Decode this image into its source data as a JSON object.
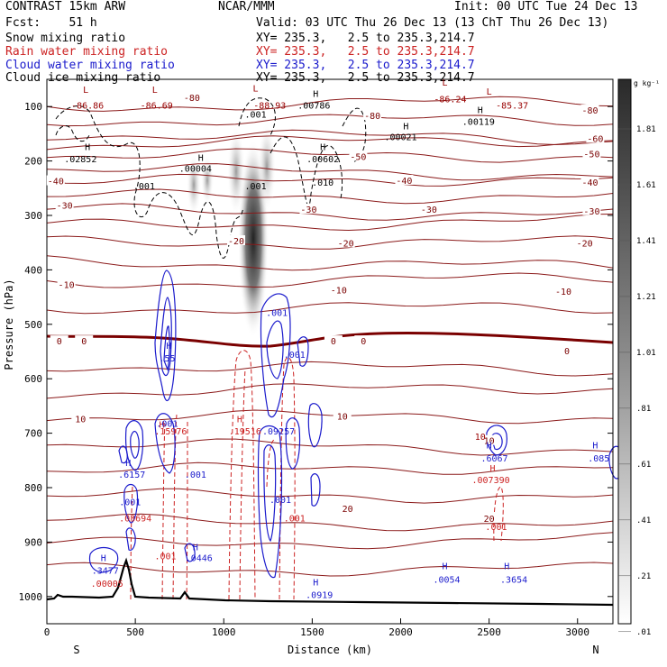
{
  "header": {
    "title": "CONTRAST 15km ARW",
    "center": "NCAR/MMM",
    "init": "Init: 00 UTC Tue 24 Dec 13",
    "fcst": "Fcst:    51 h",
    "valid": "Valid: 03 UTC Thu 26 Dec 13 (13 ChT Thu 26 Dec 13)",
    "fields": [
      {
        "label": "Snow mixing ratio",
        "xy": "XY= 235.3,   2.5 to 235.3,214.7",
        "color": "#000000"
      },
      {
        "label": "Rain water mixing ratio",
        "xy": "XY= 235.3,   2.5 to 235.3,214.7",
        "color": "#cc2222"
      },
      {
        "label": "Cloud water mixing ratio",
        "xy": "XY= 235.3,   2.5 to 235.3,214.7",
        "color": "#1a1acc"
      },
      {
        "label": "Cloud ice mixing ratio",
        "xy": "XY= 235.3,   2.5 to 235.3,214.7",
        "color": "#000000"
      }
    ]
  },
  "chart_data": {
    "type": "contour-cross-section",
    "xlabel": "Distance (km)",
    "ylabel": "Pressure (hPa)",
    "xlim": [
      0,
      3200
    ],
    "ylim": [
      1050,
      50
    ],
    "x_ticks": [
      "0",
      "500",
      "1000",
      "1500",
      "2000",
      "2500",
      "3000"
    ],
    "y_ticks": [
      "100",
      "200",
      "300",
      "400",
      "500",
      "600",
      "700",
      "800",
      "900",
      "1000"
    ],
    "left_end": "S",
    "right_end": "N",
    "colorbar": {
      "unit": "g kg⁻¹",
      "labels": [
        "1.81",
        "1.61",
        "1.41",
        "1.21",
        "1.01",
        ".81",
        ".61",
        ".41",
        ".21",
        ".01"
      ]
    },
    "temperature_labels": [
      {
        "text": "-80",
        "x": 820,
        "p": 85
      },
      {
        "text": "-80",
        "x": 1840,
        "p": 118
      },
      {
        "text": "-80",
        "x": 3070,
        "p": 108
      },
      {
        "text": "-60",
        "x": 3100,
        "p": 160
      },
      {
        "text": "-50",
        "x": 1760,
        "p": 193
      },
      {
        "text": "-50",
        "x": 3080,
        "p": 188
      },
      {
        "text": "-40",
        "x": 50,
        "p": 238
      },
      {
        "text": "-40",
        "x": 2020,
        "p": 237
      },
      {
        "text": "-40",
        "x": 3070,
        "p": 240
      },
      {
        "text": "-30",
        "x": 100,
        "p": 283
      },
      {
        "text": "-30",
        "x": 1480,
        "p": 290
      },
      {
        "text": "-30",
        "x": 2160,
        "p": 290
      },
      {
        "text": "-30",
        "x": 3080,
        "p": 293
      },
      {
        "text": "-20",
        "x": 1070,
        "p": 348
      },
      {
        "text": "-20",
        "x": 1690,
        "p": 352
      },
      {
        "text": "-20",
        "x": 3040,
        "p": 352
      },
      {
        "text": "-10",
        "x": 110,
        "p": 428
      },
      {
        "text": "-10",
        "x": 1650,
        "p": 438
      },
      {
        "text": "-10",
        "x": 2920,
        "p": 441
      },
      {
        "text": "0",
        "x": 70,
        "p": 532
      },
      {
        "text": "0",
        "x": 210,
        "p": 532
      },
      {
        "text": "0",
        "x": 1620,
        "p": 532
      },
      {
        "text": "0",
        "x": 1790,
        "p": 532
      },
      {
        "text": "0",
        "x": 2940,
        "p": 550
      },
      {
        "text": "10",
        "x": 190,
        "p": 675
      },
      {
        "text": "10",
        "x": 1670,
        "p": 670
      },
      {
        "text": "10",
        "x": 2500,
        "p": 715
      },
      {
        "text": "20",
        "x": 1700,
        "p": 840
      },
      {
        "text": "20",
        "x": 2500,
        "p": 858
      }
    ],
    "extrema_labels": [
      {
        "text": "L",
        "x": 220,
        "p": 75,
        "color": "#990000"
      },
      {
        "text": "-86.86",
        "x": 230,
        "p": 104,
        "color": "#990000"
      },
      {
        "text": "L",
        "x": 610,
        "p": 75,
        "color": "#990000"
      },
      {
        "text": "-86.69",
        "x": 620,
        "p": 104,
        "color": "#990000"
      },
      {
        "text": "L",
        "x": 1180,
        "p": 72,
        "color": "#990000"
      },
      {
        "text": "-88.93",
        "x": 1260,
        "p": 104,
        "color": "#990000"
      },
      {
        "text": "L",
        "x": 2250,
        "p": 62,
        "color": "#990000"
      },
      {
        "text": "-86.24",
        "x": 2280,
        "p": 92,
        "color": "#990000"
      },
      {
        "text": "L",
        "x": 2500,
        "p": 78,
        "color": "#990000"
      },
      {
        "text": "-85.37",
        "x": 2630,
        "p": 104,
        "color": "#990000"
      },
      {
        "text": ".001",
        "x": 1180,
        "p": 120,
        "color": "#000000"
      },
      {
        "text": "H",
        "x": 1520,
        "p": 82,
        "color": "#000000"
      },
      {
        "text": ".00786",
        "x": 1510,
        "p": 104,
        "color": "#000000"
      },
      {
        "text": "H",
        "x": 2450,
        "p": 112,
        "color": "#000000"
      },
      {
        "text": ".00119",
        "x": 2440,
        "p": 134,
        "color": "#000000"
      },
      {
        "text": "H",
        "x": 2030,
        "p": 142,
        "color": "#000000"
      },
      {
        "text": ".00021",
        "x": 2000,
        "p": 162,
        "color": "#000000"
      },
      {
        "text": "H",
        "x": 230,
        "p": 180,
        "color": "#000000"
      },
      {
        "text": ".02852",
        "x": 190,
        "p": 202,
        "color": "#000000"
      },
      {
        "text": "H",
        "x": 1560,
        "p": 180,
        "color": "#000000"
      },
      {
        "text": ".00602",
        "x": 1560,
        "p": 202,
        "color": "#000000"
      },
      {
        "text": "H",
        "x": 870,
        "p": 200,
        "color": "#000000"
      },
      {
        "text": ".00004",
        "x": 840,
        "p": 220,
        "color": "#000000"
      },
      {
        "text": ".001",
        "x": 550,
        "p": 252,
        "color": "#000000"
      },
      {
        "text": ".001",
        "x": 1180,
        "p": 252,
        "color": "#000000"
      },
      {
        "text": ".010",
        "x": 1560,
        "p": 245,
        "color": "#000000"
      },
      {
        "text": ".001",
        "x": 1300,
        "p": 485,
        "color": "#1a1acc"
      },
      {
        "text": "H",
        "x": 690,
        "p": 545,
        "color": "#1a1acc"
      },
      {
        "text": ".55",
        "x": 680,
        "p": 568,
        "color": "#1a1acc"
      },
      {
        "text": ".001",
        "x": 1400,
        "p": 562,
        "color": "#1a1acc"
      },
      {
        "text": "H",
        "x": 1090,
        "p": 680,
        "color": "#cc2222"
      },
      {
        "text": ".19516",
        "x": 1120,
        "p": 702,
        "color": "#cc2222"
      },
      {
        "text": ".09257",
        "x": 1310,
        "p": 702,
        "color": "#1a1acc"
      },
      {
        "text": "H",
        "x": 650,
        "p": 690,
        "color": "#cc2222"
      },
      {
        "text": ".15976",
        "x": 700,
        "p": 702,
        "color": "#cc2222"
      },
      {
        "text": ".001",
        "x": 680,
        "p": 688,
        "color": "#1a1acc"
      },
      {
        "text": "H",
        "x": 460,
        "p": 760,
        "color": "#1a1acc"
      },
      {
        "text": ".6157",
        "x": 480,
        "p": 782,
        "color": "#1a1acc"
      },
      {
        "text": ".001",
        "x": 840,
        "p": 782,
        "color": "#1a1acc"
      },
      {
        "text": ".001",
        "x": 470,
        "p": 832,
        "color": "#1a1acc"
      },
      {
        "text": ".001",
        "x": 1320,
        "p": 828,
        "color": "#1a1acc"
      },
      {
        "text": ".03694",
        "x": 500,
        "p": 862,
        "color": "#cc2222"
      },
      {
        "text": ".001",
        "x": 670,
        "p": 932,
        "color": "#cc2222"
      },
      {
        "text": ".001",
        "x": 1400,
        "p": 862,
        "color": "#cc2222"
      },
      {
        "text": "H",
        "x": 840,
        "p": 915,
        "color": "#1a1acc"
      },
      {
        "text": ".0446",
        "x": 860,
        "p": 935,
        "color": "#1a1acc"
      },
      {
        "text": "H",
        "x": 320,
        "p": 935,
        "color": "#1a1acc"
      },
      {
        "text": ".3477",
        "x": 330,
        "p": 958,
        "color": "#1a1acc"
      },
      {
        "text": ".00005",
        "x": 340,
        "p": 982,
        "color": "#cc2222"
      },
      {
        "text": "H",
        "x": 1520,
        "p": 980,
        "color": "#1a1acc"
      },
      {
        "text": ".0919",
        "x": 1540,
        "p": 1003,
        "color": "#1a1acc"
      },
      {
        "text": "10",
        "x": 2450,
        "p": 712,
        "color": "#990000"
      },
      {
        "text": "H",
        "x": 2500,
        "p": 728,
        "color": "#1a1acc"
      },
      {
        "text": ".6067",
        "x": 2530,
        "p": 752,
        "color": "#1a1acc"
      },
      {
        "text": "H",
        "x": 2520,
        "p": 770,
        "color": "#cc2222"
      },
      {
        "text": ".007390",
        "x": 2510,
        "p": 792,
        "color": "#cc2222"
      },
      {
        "text": ".001",
        "x": 2540,
        "p": 878,
        "color": "#cc2222"
      },
      {
        "text": "H",
        "x": 3100,
        "p": 728,
        "color": "#1a1acc"
      },
      {
        "text": ".085",
        "x": 3120,
        "p": 752,
        "color": "#1a1acc"
      },
      {
        "text": "H",
        "x": 2250,
        "p": 950,
        "color": "#1a1acc"
      },
      {
        "text": ".0054",
        "x": 2260,
        "p": 975,
        "color": "#1a1acc"
      },
      {
        "text": "H",
        "x": 2600,
        "p": 950,
        "color": "#1a1acc"
      },
      {
        "text": ".3654",
        "x": 2640,
        "p": 975,
        "color": "#1a1acc"
      }
    ]
  }
}
